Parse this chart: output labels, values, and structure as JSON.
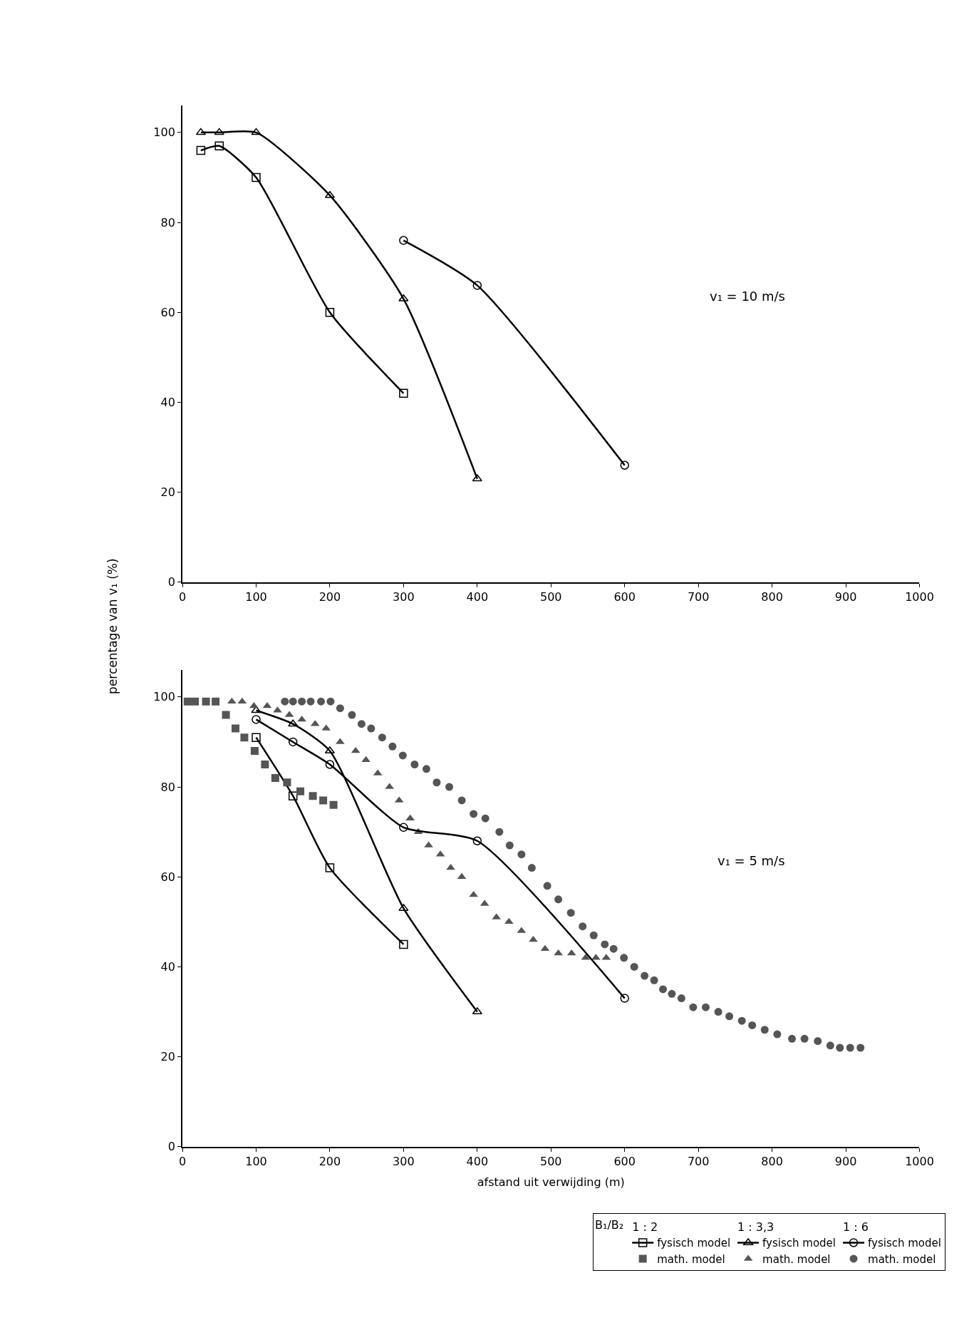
{
  "chart_data": [
    {
      "type": "line",
      "title": "v₁ = 10 m/s",
      "ylabel": "percentage van v₁ (%)",
      "xlim": [
        0,
        1000
      ],
      "xticks": [
        0,
        100,
        200,
        300,
        400,
        500,
        600,
        700,
        800,
        900,
        1000
      ],
      "ylim": [
        0,
        106
      ],
      "yticks": [
        0,
        20,
        40,
        60,
        80,
        100
      ],
      "legend": false,
      "line_style": "solid",
      "series": [
        {
          "marker": "square",
          "color": "#000000",
          "x": [
            25,
            50,
            100,
            200,
            300
          ],
          "values": [
            96,
            97,
            90,
            60,
            42
          ]
        },
        {
          "marker": "triangle",
          "color": "#000000",
          "x": [
            25,
            50,
            100,
            200,
            300,
            400
          ],
          "values": [
            100,
            100,
            100,
            86,
            63,
            23
          ]
        },
        {
          "marker": "circle",
          "color": "#000000",
          "x": [
            300,
            400,
            600
          ],
          "values": [
            76,
            66,
            26
          ]
        }
      ]
    },
    {
      "type": "line",
      "title": "v₁ = 5 m/s",
      "xlabel": "afstand uit verwijding (m)",
      "legend_title": "B₁/B₂",
      "annotations": [
        "1 : 2",
        "1 : 3,3",
        "1 : 6"
      ],
      "xlim": [
        0,
        1000
      ],
      "xticks": [
        0,
        100,
        200,
        300,
        400,
        500,
        600,
        700,
        800,
        900,
        1000
      ],
      "ylim": [
        0,
        106
      ],
      "yticks": [
        0,
        20,
        40,
        60,
        80,
        100
      ],
      "legend": "bottom right",
      "line_style": "solid",
      "series": [
        {
          "name": "fysisch model",
          "marker": "square",
          "color": "#000000",
          "x": [
            100,
            150,
            200,
            300
          ],
          "values": [
            91,
            78,
            62,
            45
          ]
        },
        {
          "name": "math. model",
          "type": "scatter",
          "marker": "square",
          "color": "#555555",
          "x": [
            7,
            17,
            32,
            45,
            59,
            72,
            84,
            98,
            112,
            126,
            142,
            160,
            177,
            191,
            205
          ],
          "values": [
            99,
            99,
            99,
            99,
            96,
            93,
            91,
            88,
            85,
            82,
            81,
            79,
            78,
            77,
            76
          ]
        },
        {
          "name": "fysisch model",
          "marker": "triangle",
          "color": "#000000",
          "x": [
            100,
            150,
            200,
            300,
            400
          ],
          "values": [
            97,
            94,
            88,
            53,
            30
          ]
        },
        {
          "name": "math. model",
          "type": "scatter",
          "marker": "triangle",
          "color": "#555555",
          "x": [
            67,
            81,
            97,
            115,
            129,
            145,
            162,
            180,
            195,
            214,
            235,
            249,
            265,
            281,
            294,
            309,
            320,
            334,
            350,
            364,
            379,
            395,
            410,
            426,
            443,
            460,
            476,
            492,
            510,
            528,
            547,
            561,
            575
          ],
          "values": [
            99,
            99,
            98,
            98,
            97,
            96,
            95,
            94,
            93,
            90,
            88,
            86,
            83,
            80,
            77,
            73,
            70,
            67,
            65,
            62,
            60,
            56,
            54,
            51,
            50,
            48,
            46,
            44,
            43,
            43,
            42,
            42,
            42
          ]
        },
        {
          "name": "fysisch model",
          "marker": "circle",
          "color": "#000000",
          "x": [
            100,
            150,
            200,
            300,
            400,
            600
          ],
          "values": [
            95,
            90,
            85,
            71,
            68,
            33
          ]
        },
        {
          "name": "math. model",
          "type": "scatter",
          "marker": "circle",
          "color": "#555555",
          "x": [
            139,
            150,
            162,
            174,
            188,
            201,
            214,
            230,
            243,
            256,
            271,
            285,
            299,
            315,
            331,
            345,
            362,
            379,
            395,
            411,
            430,
            444,
            460,
            474,
            495,
            510,
            527,
            543,
            558,
            573,
            585,
            599,
            613,
            627,
            640,
            652,
            664,
            677,
            693,
            710,
            727,
            742,
            759,
            773,
            790,
            807,
            827,
            844,
            862,
            879,
            892,
            906,
            920
          ],
          "values": [
            99,
            99,
            99,
            99,
            99,
            99,
            97.5,
            96,
            94,
            93,
            91,
            89,
            87,
            85,
            84,
            81,
            80,
            77,
            74,
            73,
            70,
            67,
            65,
            62,
            58,
            55,
            52,
            49,
            47,
            45,
            44,
            42,
            40,
            38,
            37,
            35,
            34,
            33,
            31,
            31,
            30,
            29,
            28,
            27,
            26,
            25,
            24,
            24,
            23.5,
            22.5,
            22,
            22,
            22
          ]
        }
      ]
    }
  ]
}
